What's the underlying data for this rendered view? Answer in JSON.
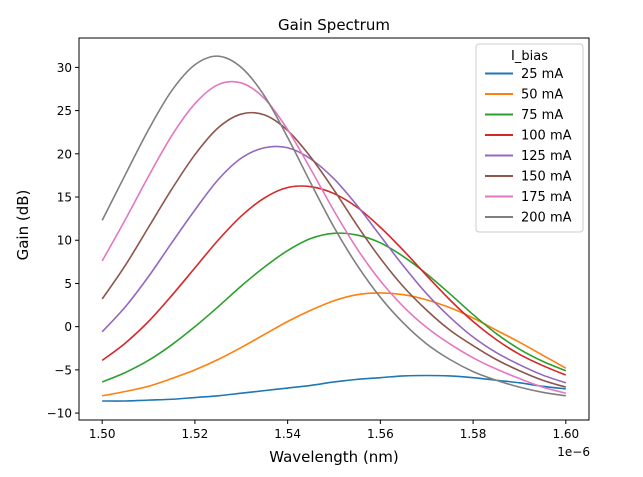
{
  "chart_data": {
    "type": "line",
    "title": "Gain Spectrum",
    "xlabel": "Wavelength (nm)",
    "ylabel": "Gain (dB)",
    "x_offset_label": "1e−6",
    "xlim": [
      1.495,
      1.605
    ],
    "ylim": [
      -10.8,
      33.4
    ],
    "x_ticks": [
      1.5,
      1.52,
      1.54,
      1.56,
      1.58,
      1.6
    ],
    "x_tick_labels": [
      "1.50",
      "1.52",
      "1.54",
      "1.56",
      "1.58",
      "1.60"
    ],
    "y_ticks": [
      -10,
      -5,
      0,
      5,
      10,
      15,
      20,
      25,
      30
    ],
    "y_tick_labels": [
      "−10",
      "−5",
      "0",
      "5",
      "10",
      "15",
      "20",
      "25",
      "30"
    ],
    "grid": false,
    "legend": {
      "title": "I_bias",
      "position": "top-right"
    },
    "x": [
      1.5,
      1.505,
      1.51,
      1.515,
      1.52,
      1.525,
      1.53,
      1.535,
      1.54,
      1.545,
      1.55,
      1.555,
      1.56,
      1.565,
      1.57,
      1.575,
      1.58,
      1.585,
      1.59,
      1.595,
      1.6
    ],
    "series": [
      {
        "name": "25 mA",
        "color": "#1f77b4",
        "values": [
          -8.6,
          -8.6,
          -8.5,
          -8.4,
          -8.2,
          -8.0,
          -7.7,
          -7.4,
          -7.1,
          -6.8,
          -6.4,
          -6.1,
          -5.9,
          -5.7,
          -5.65,
          -5.7,
          -5.9,
          -6.2,
          -6.5,
          -6.9,
          -7.2
        ]
      },
      {
        "name": "50 mA",
        "color": "#ff7f0e",
        "values": [
          -8.0,
          -7.5,
          -6.9,
          -6.0,
          -5.0,
          -3.8,
          -2.4,
          -0.9,
          0.6,
          1.9,
          3.0,
          3.7,
          3.9,
          3.7,
          3.1,
          2.2,
          1.0,
          -0.4,
          -1.8,
          -3.3,
          -4.8
        ]
      },
      {
        "name": "75 mA",
        "color": "#2ca02c",
        "values": [
          -6.4,
          -5.3,
          -3.9,
          -2.1,
          0.0,
          2.3,
          4.7,
          6.9,
          8.8,
          10.2,
          10.8,
          10.6,
          9.7,
          8.1,
          6.1,
          3.8,
          1.4,
          -0.8,
          -2.6,
          -4.0,
          -5.1
        ]
      },
      {
        "name": "100 mA",
        "color": "#d62728",
        "values": [
          -3.9,
          -1.9,
          0.6,
          3.6,
          6.8,
          10.0,
          12.8,
          14.9,
          16.1,
          16.2,
          15.4,
          13.8,
          11.5,
          8.8,
          5.9,
          3.1,
          0.6,
          -1.5,
          -3.2,
          -4.5,
          -5.6
        ]
      },
      {
        "name": "125 mA",
        "color": "#9467bd",
        "values": [
          -0.6,
          2.3,
          5.8,
          9.7,
          13.5,
          17.0,
          19.5,
          20.7,
          20.7,
          19.4,
          17.1,
          14.0,
          10.5,
          7.0,
          3.8,
          1.1,
          -1.2,
          -3.0,
          -4.4,
          -5.6,
          -6.5
        ]
      },
      {
        "name": "150 mA",
        "color": "#8c564b",
        "values": [
          3.2,
          7.1,
          11.5,
          15.9,
          19.9,
          23.0,
          24.6,
          24.5,
          22.7,
          19.6,
          15.8,
          11.7,
          7.9,
          4.6,
          1.9,
          -0.4,
          -2.2,
          -3.8,
          -5.1,
          -6.2,
          -7.0
        ]
      },
      {
        "name": "175 mA",
        "color": "#e377c2",
        "values": [
          7.6,
          12.4,
          17.4,
          22.1,
          25.8,
          28.0,
          28.2,
          26.4,
          22.8,
          18.2,
          13.4,
          9.0,
          5.3,
          2.3,
          -0.1,
          -2.0,
          -3.6,
          -4.9,
          -6.0,
          -7.0,
          -7.7
        ]
      },
      {
        "name": "200 mA",
        "color": "#7f7f7f",
        "values": [
          12.3,
          17.6,
          22.8,
          27.3,
          30.3,
          31.3,
          30.0,
          26.7,
          21.9,
          16.6,
          11.5,
          7.1,
          3.4,
          0.4,
          -2.0,
          -3.8,
          -5.2,
          -6.2,
          -7.0,
          -7.6,
          -8.0
        ]
      }
    ]
  }
}
